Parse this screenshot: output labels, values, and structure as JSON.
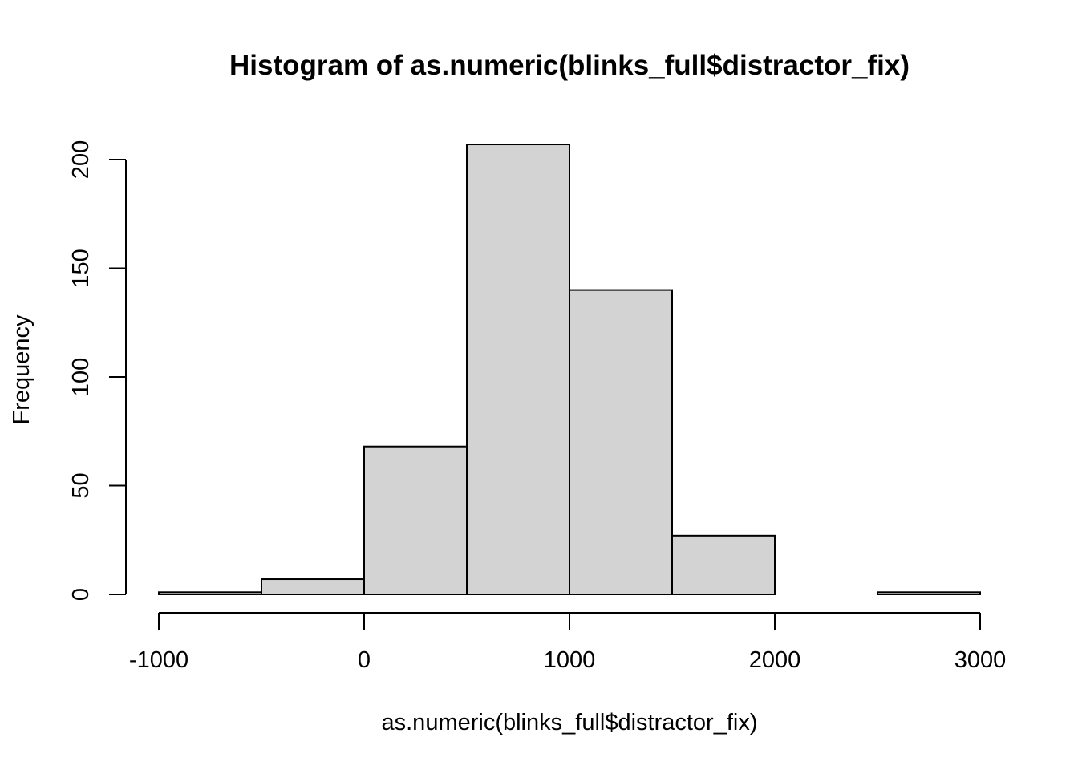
{
  "chart_data": {
    "type": "bar",
    "title": "Histogram of as.numeric(blinks_full$distractor_fix)",
    "xlabel": "as.numeric(blinks_full$distractor_fix)",
    "ylabel": "Frequency",
    "bins": [
      {
        "start": -1000,
        "end": -500,
        "count": 1
      },
      {
        "start": -500,
        "end": 0,
        "count": 7
      },
      {
        "start": 0,
        "end": 500,
        "count": 68
      },
      {
        "start": 500,
        "end": 1000,
        "count": 207
      },
      {
        "start": 1000,
        "end": 1500,
        "count": 140
      },
      {
        "start": 1500,
        "end": 2000,
        "count": 27
      },
      {
        "start": 2000,
        "end": 2500,
        "count": 0
      },
      {
        "start": 2500,
        "end": 3000,
        "count": 1
      }
    ],
    "xlim": [
      -1000,
      3000
    ],
    "ylim": [
      0,
      200
    ],
    "x_ticks": [
      -1000,
      0,
      1000,
      2000,
      3000
    ],
    "x_tick_labels": [
      "-1000",
      "0",
      "1000",
      "2000",
      "3000"
    ],
    "y_ticks": [
      0,
      50,
      100,
      150,
      200
    ],
    "y_tick_labels": [
      "0",
      "50",
      "100",
      "150",
      "200"
    ],
    "grid": false,
    "colors": {
      "bar_fill": "#d3d3d3",
      "bar_stroke": "#000000"
    }
  }
}
